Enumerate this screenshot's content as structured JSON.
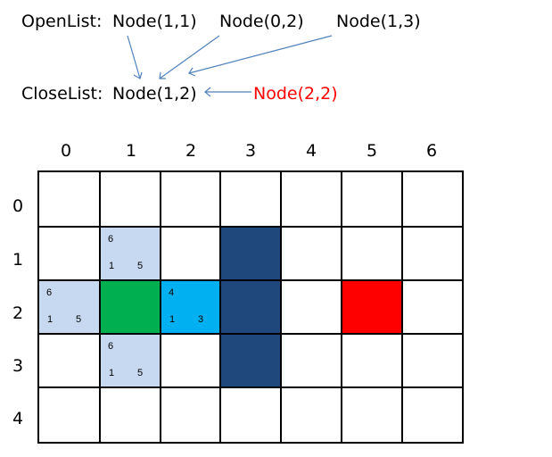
{
  "open_list": {
    "label": "OpenList:",
    "nodes": [
      "Node(1,1)",
      "Node(0,2)",
      "Node(1,3)"
    ]
  },
  "close_list": {
    "label": "CloseList:",
    "node": "Node(1,2)",
    "incoming": "Node(2,2)"
  },
  "grid": {
    "columns": [
      "0",
      "1",
      "2",
      "3",
      "4",
      "5",
      "6"
    ],
    "rows": [
      "0",
      "1",
      "2",
      "3",
      "4"
    ],
    "cells": [
      {
        "col": 1,
        "row": 1,
        "role": "open",
        "f": "6",
        "g": "1",
        "h": "5"
      },
      {
        "col": 0,
        "row": 2,
        "role": "open",
        "f": "6",
        "g": "1",
        "h": "5"
      },
      {
        "col": 1,
        "row": 2,
        "role": "start"
      },
      {
        "col": 2,
        "row": 2,
        "role": "current",
        "f": "4",
        "g": "1",
        "h": "3"
      },
      {
        "col": 1,
        "row": 3,
        "role": "open",
        "f": "6",
        "g": "1",
        "h": "5"
      },
      {
        "col": 3,
        "row": 1,
        "role": "wall"
      },
      {
        "col": 3,
        "row": 2,
        "role": "wall"
      },
      {
        "col": 3,
        "row": 3,
        "role": "wall"
      },
      {
        "col": 5,
        "row": 2,
        "role": "target"
      }
    ]
  },
  "colors": {
    "open": "#c6d9f1",
    "start": "#00b050",
    "current": "#00b0f0",
    "wall": "#1f497d",
    "target": "#ff0000",
    "highlight_text": "#ff0000",
    "arrow": "#4f81bd"
  }
}
